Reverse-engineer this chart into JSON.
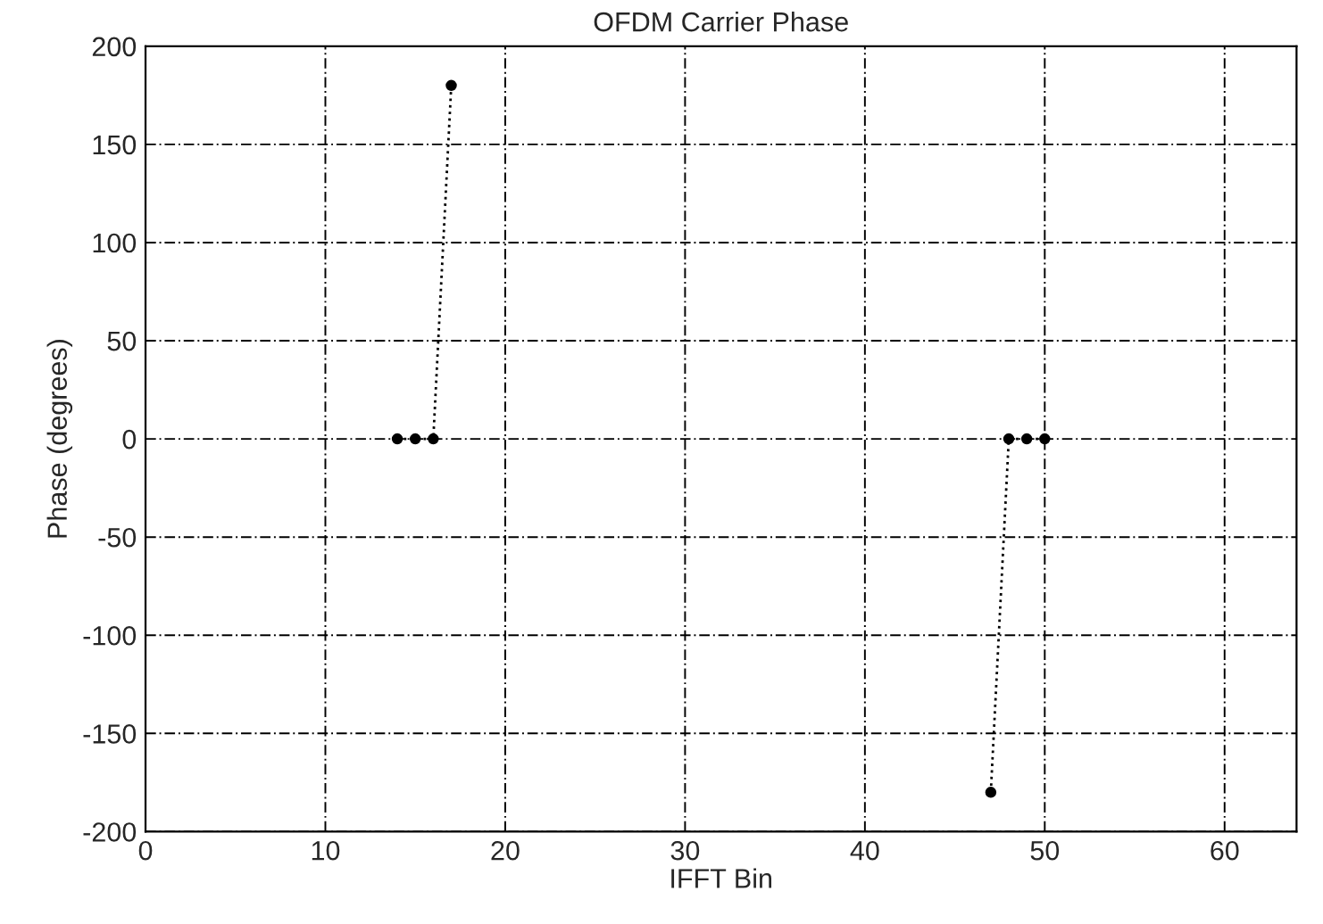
{
  "chart_data": {
    "type": "line",
    "title": "OFDM Carrier Phase",
    "xlabel": "IFFT Bin",
    "ylabel": "Phase (degrees)",
    "series": [
      {
        "color": "#000000",
        "x": [
          14,
          15,
          16,
          17
        ],
        "values": [
          0,
          0,
          0,
          180
        ]
      },
      {
        "color": "#000000",
        "x": [
          47,
          48,
          49,
          50
        ],
        "values": [
          -180,
          0,
          0,
          0
        ]
      }
    ],
    "xlim": [
      0,
      64
    ],
    "xticks": [
      0,
      10,
      20,
      30,
      40,
      50,
      60
    ],
    "ylim": [
      -200,
      200
    ],
    "yticks": [
      -200,
      -150,
      -100,
      -50,
      0,
      50,
      100,
      150,
      200
    ],
    "grid": true,
    "marker": "circle",
    "line_style": "dotted"
  }
}
